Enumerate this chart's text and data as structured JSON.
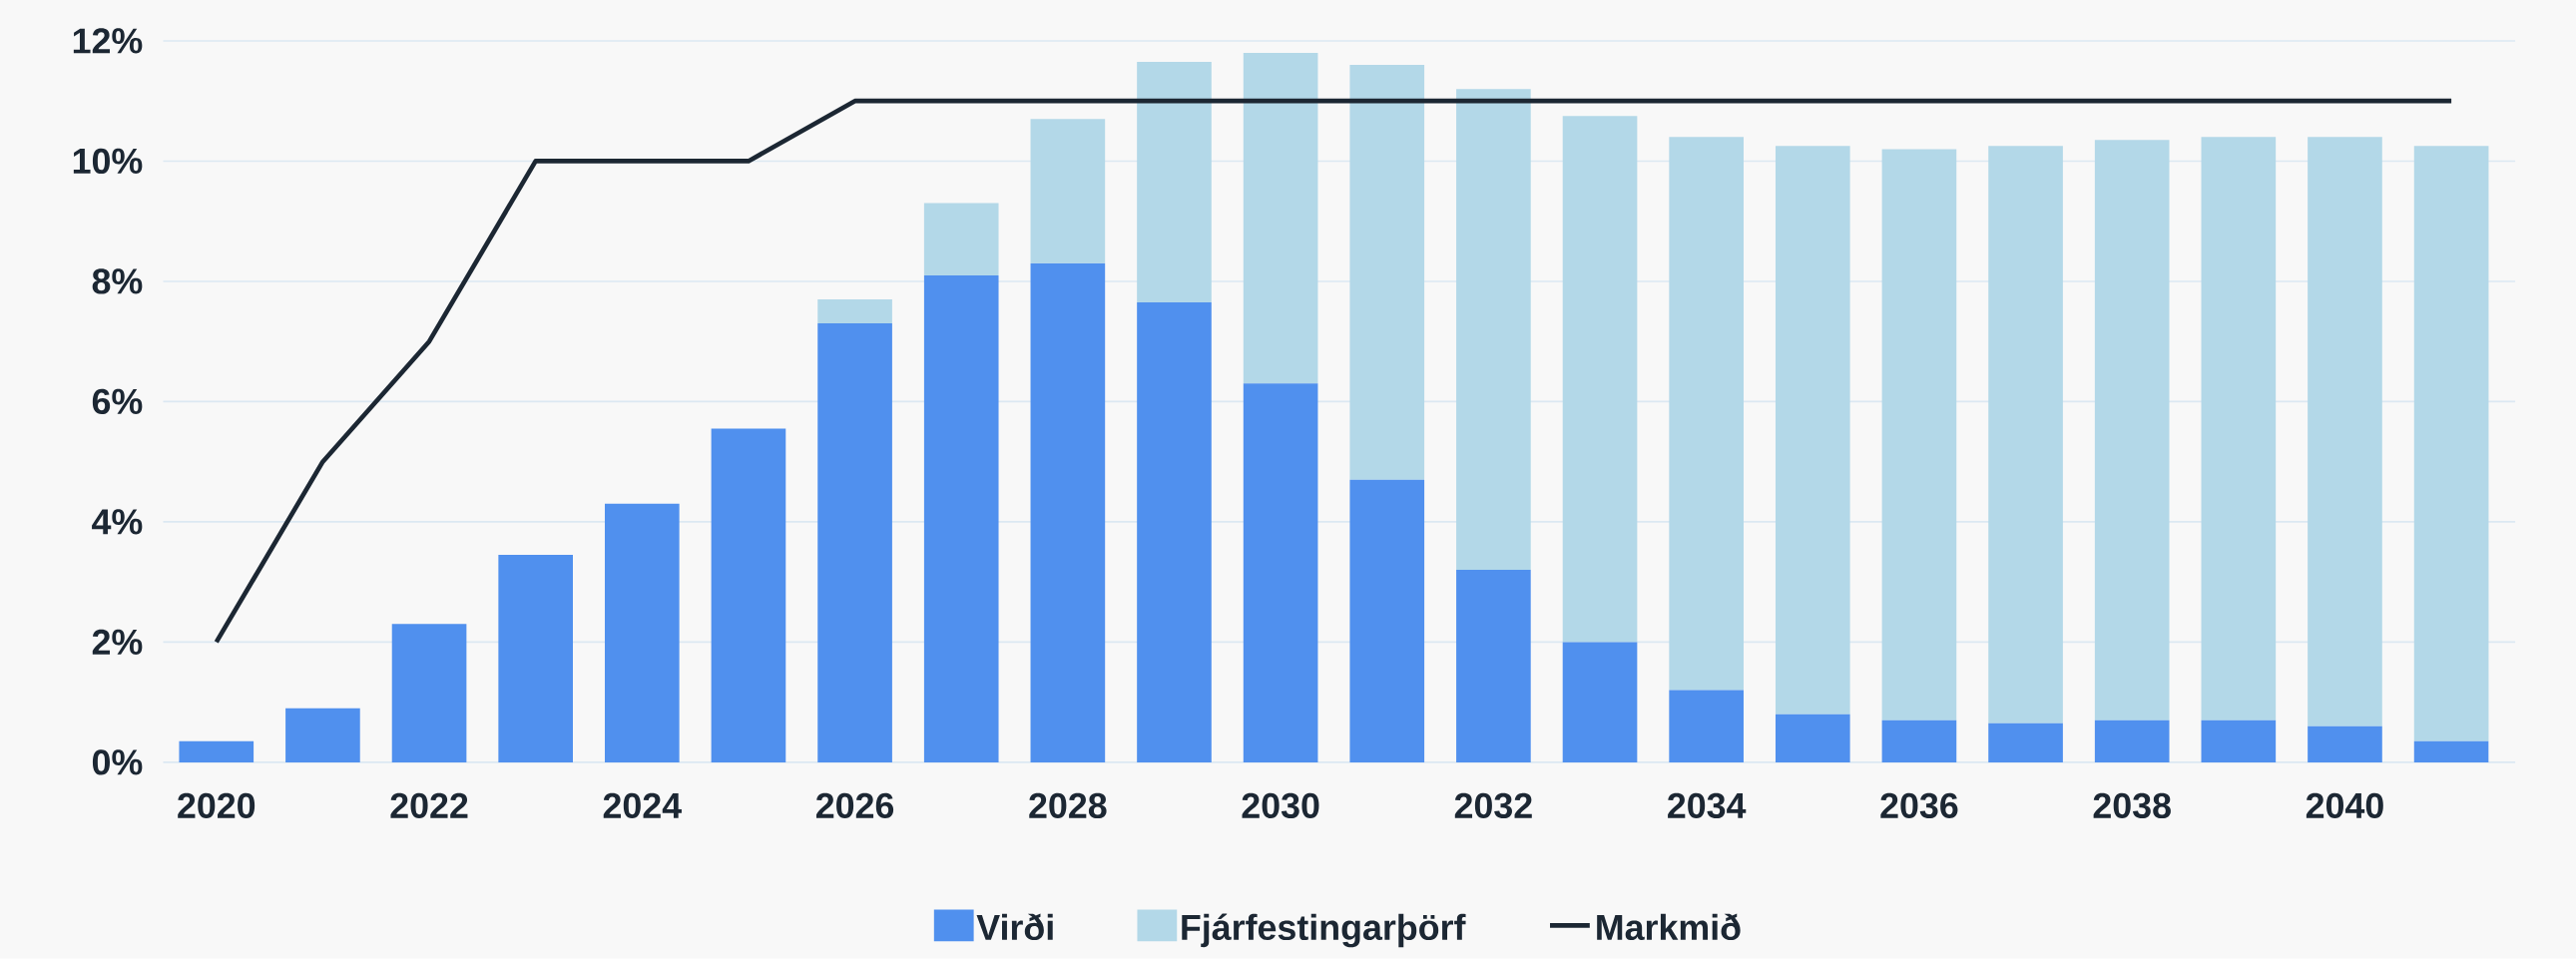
{
  "chart_data": {
    "type": "bar",
    "stacked": true,
    "x": [
      2020,
      2021,
      2022,
      2023,
      2024,
      2025,
      2026,
      2027,
      2028,
      2029,
      2030,
      2031,
      2032,
      2033,
      2034,
      2035,
      2036,
      2037,
      2038,
      2039,
      2040,
      2041
    ],
    "series": [
      {
        "name": "Virði",
        "color": "#5090ee",
        "values": [
          0.35,
          0.9,
          2.3,
          3.45,
          4.3,
          5.55,
          7.3,
          8.1,
          8.3,
          7.65,
          6.3,
          4.7,
          3.2,
          2.0,
          1.2,
          0.8,
          0.7,
          0.65,
          0.7,
          0.7,
          0.6,
          0.35
        ]
      },
      {
        "name": "Fjárfestingarþörf",
        "color": "#b3d8e8",
        "values": [
          0,
          0,
          0,
          0,
          0,
          0,
          0.4,
          1.2,
          2.4,
          4.0,
          5.5,
          6.9,
          8.0,
          8.75,
          9.2,
          9.45,
          9.5,
          9.6,
          9.65,
          9.7,
          9.8,
          9.9
        ]
      },
      {
        "name": "Markmið",
        "type": "line",
        "color": "#1c2733",
        "values": [
          2,
          5,
          7,
          10,
          10,
          10,
          11,
          11,
          11,
          11,
          11,
          11,
          11,
          11,
          11,
          11,
          11,
          11,
          11,
          11,
          11,
          11
        ]
      }
    ],
    "xlim": [
      2019.5,
      2041.6
    ],
    "xticks": [
      2020,
      2022,
      2024,
      2026,
      2028,
      2030,
      2032,
      2034,
      2036,
      2038,
      2040
    ],
    "ylim": [
      0,
      12
    ],
    "yticks": [
      {
        "value": 0,
        "label": "0%"
      },
      {
        "value": 2,
        "label": "2%"
      },
      {
        "value": 4,
        "label": "4%"
      },
      {
        "value": 6,
        "label": "6%"
      },
      {
        "value": 8,
        "label": "8%"
      },
      {
        "value": 10,
        "label": "10%"
      },
      {
        "value": 12,
        "label": "12%"
      }
    ],
    "grid": "y",
    "legend": "bottom"
  }
}
